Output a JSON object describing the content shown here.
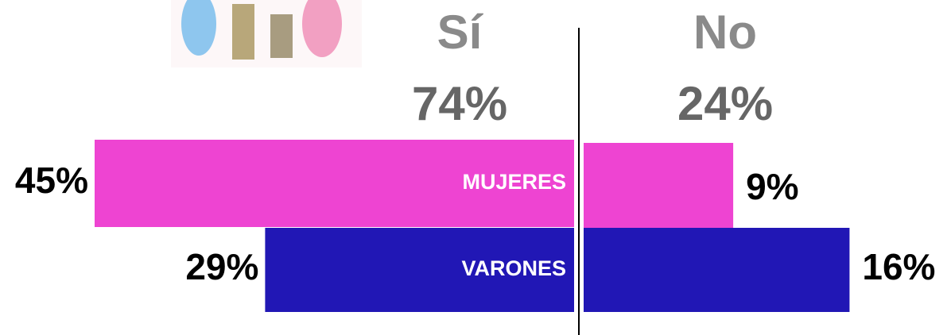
{
  "chart_data": {
    "type": "bar",
    "categories": [
      "Sí",
      "No"
    ],
    "totals": [
      74,
      24
    ],
    "total_labels": [
      "74%",
      "24%"
    ],
    "series": [
      {
        "name": "MUJERES",
        "color": "#ee44d2",
        "values": [
          45,
          9
        ],
        "value_labels": [
          "45%",
          "9%"
        ]
      },
      {
        "name": "VARONES",
        "color": "#2117b5",
        "values": [
          29,
          16
        ],
        "value_labels": [
          "29%",
          "16%"
        ]
      }
    ]
  }
}
